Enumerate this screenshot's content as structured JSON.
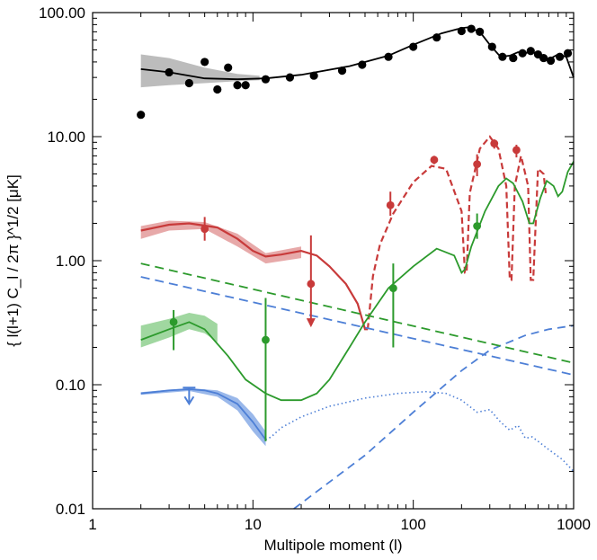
{
  "chart_data": {
    "type": "line",
    "xlabel": "Multipole moment (l)",
    "ylabel": "{ l(l+1) C_l / 2π }^1/2 [μK]",
    "xscale": "log",
    "yscale": "log",
    "xlim": [
      1,
      1000
    ],
    "ylim": [
      0.01,
      100
    ],
    "x_ticks": [
      1,
      10,
      100,
      1000
    ],
    "x_tick_labels": [
      "1",
      "10",
      "100",
      "1000"
    ],
    "y_ticks": [
      0.01,
      0.1,
      1,
      10,
      100
    ],
    "y_tick_labels": [
      "0.01",
      "0.10",
      "1.00",
      "10.00",
      "100.00"
    ],
    "grid": false,
    "legend": "none",
    "colors": {
      "TT": "#000000",
      "EE": "#c83a3a",
      "TE": "#2c9a2c",
      "BB": "#4d7fd6",
      "TT_band": "#b5b5b5",
      "EE_band": "#e39a9a",
      "TE_band": "#8fd08f",
      "BB_band": "#8fb0e8"
    },
    "series": [
      {
        "key": "TT",
        "curve": [
          [
            2,
            35
          ],
          [
            3,
            33
          ],
          [
            5,
            29.5
          ],
          [
            8,
            29
          ],
          [
            12,
            29.5
          ],
          [
            20,
            31.5
          ],
          [
            40,
            37
          ],
          [
            70,
            45
          ],
          [
            100,
            55
          ],
          [
            150,
            68
          ],
          [
            200,
            75
          ],
          [
            220,
            76
          ],
          [
            260,
            70
          ],
          [
            300,
            55
          ],
          [
            350,
            44
          ],
          [
            400,
            45
          ],
          [
            450,
            48
          ],
          [
            500,
            47
          ],
          [
            550,
            49
          ],
          [
            600,
            45
          ],
          [
            700,
            42
          ],
          [
            800,
            46
          ],
          [
            900,
            44
          ],
          [
            1000,
            30
          ]
        ],
        "band": [
          [
            2,
            25,
            46
          ],
          [
            3,
            26,
            43
          ],
          [
            5,
            27,
            36
          ],
          [
            8,
            28,
            32
          ],
          [
            11,
            28.5,
            31
          ]
        ],
        "points": [
          [
            2,
            15
          ],
          [
            3,
            33
          ],
          [
            4,
            27
          ],
          [
            5,
            40
          ],
          [
            6,
            24
          ],
          [
            7,
            36
          ],
          [
            8,
            26
          ],
          [
            9,
            26
          ],
          [
            12,
            29
          ],
          [
            17,
            30
          ],
          [
            24,
            31
          ],
          [
            36,
            34
          ],
          [
            48,
            38
          ],
          [
            70,
            44
          ],
          [
            100,
            53
          ],
          [
            140,
            63
          ],
          [
            200,
            71
          ],
          [
            230,
            74
          ],
          [
            260,
            70
          ],
          [
            310,
            53
          ],
          [
            360,
            44
          ],
          [
            420,
            43
          ],
          [
            480,
            47
          ],
          [
            540,
            49
          ],
          [
            600,
            46
          ],
          [
            650,
            43
          ],
          [
            720,
            41
          ],
          [
            820,
            44
          ],
          [
            920,
            47
          ]
        ]
      },
      {
        "key": "EE",
        "curve": [
          [
            2,
            1.75
          ],
          [
            3,
            1.95
          ],
          [
            4,
            2.0
          ],
          [
            6,
            1.85
          ],
          [
            8,
            1.5
          ],
          [
            10,
            1.2
          ],
          [
            12,
            1.08
          ],
          [
            15,
            1.12
          ],
          [
            20,
            1.2
          ],
          [
            25,
            1.1
          ],
          [
            30,
            0.9
          ],
          [
            38,
            0.65
          ],
          [
            45,
            0.45
          ],
          [
            50,
            0.28
          ],
          [
            52,
            0.28
          ],
          [
            56,
            0.75
          ],
          [
            62,
            1.35
          ],
          [
            75,
            2.4
          ],
          [
            100,
            4.3
          ],
          [
            130,
            5.8
          ],
          [
            160,
            5.5
          ],
          [
            200,
            2.5
          ],
          [
            210,
            0.8
          ],
          [
            215,
            0.8
          ],
          [
            225,
            3.5
          ],
          [
            260,
            8.0
          ],
          [
            300,
            10.0
          ],
          [
            340,
            8.0
          ],
          [
            380,
            4.0
          ],
          [
            400,
            0.7
          ],
          [
            410,
            0.7
          ],
          [
            430,
            4.0
          ],
          [
            470,
            7.0
          ],
          [
            520,
            4.0
          ],
          [
            540,
            0.7
          ],
          [
            560,
            0.7
          ],
          [
            600,
            5.5
          ],
          [
            650,
            5.0
          ],
          [
            670,
            3.5
          ]
        ],
        "band": [
          [
            2,
            1.5,
            1.9
          ],
          [
            3,
            1.75,
            2.1
          ],
          [
            5,
            1.8,
            2.05
          ],
          [
            8,
            1.3,
            1.65
          ],
          [
            12,
            0.95,
            1.15
          ],
          [
            20,
            1.05,
            1.3
          ]
        ],
        "points": [
          [
            5,
            1.8,
            1.45,
            2.25
          ],
          [
            23,
            0.65,
            0.3,
            1.6
          ],
          [
            72,
            2.8,
            2.3,
            3.6
          ],
          [
            135,
            6.5,
            6.0,
            7.0
          ],
          [
            250,
            6.0,
            4.8,
            7.2
          ],
          [
            320,
            8.8,
            8.0,
            9.5
          ],
          [
            440,
            7.8,
            6.8,
            8.6
          ]
        ]
      },
      {
        "key": "TE",
        "curve": [
          [
            2,
            0.23
          ],
          [
            3,
            0.28
          ],
          [
            4,
            0.32
          ],
          [
            5,
            0.28
          ],
          [
            7,
            0.17
          ],
          [
            9,
            0.11
          ],
          [
            12,
            0.085
          ],
          [
            15,
            0.075
          ],
          [
            20,
            0.075
          ],
          [
            25,
            0.085
          ],
          [
            30,
            0.11
          ],
          [
            40,
            0.2
          ],
          [
            50,
            0.32
          ],
          [
            70,
            0.6
          ],
          [
            100,
            0.9
          ],
          [
            140,
            1.25
          ],
          [
            180,
            1.1
          ],
          [
            200,
            0.8
          ],
          [
            210,
            0.85
          ],
          [
            230,
            1.3
          ],
          [
            280,
            2.5
          ],
          [
            340,
            4.0
          ],
          [
            380,
            4.6
          ],
          [
            420,
            4.2
          ],
          [
            480,
            3.0
          ],
          [
            530,
            2.0
          ],
          [
            560,
            2.0
          ],
          [
            620,
            3.2
          ],
          [
            680,
            4.4
          ],
          [
            750,
            4.0
          ],
          [
            800,
            3.3
          ],
          [
            850,
            3.6
          ],
          [
            920,
            5.2
          ],
          [
            1000,
            6.3
          ]
        ],
        "band": [
          [
            2,
            0.2,
            0.3
          ],
          [
            3,
            0.24,
            0.34
          ],
          [
            4,
            0.28,
            0.38
          ],
          [
            5,
            0.26,
            0.36
          ],
          [
            6,
            0.22,
            0.31
          ]
        ],
        "points": [
          [
            3.2,
            0.32,
            0.19,
            0.4
          ],
          [
            12,
            0.23,
            0.035,
            0.5
          ],
          [
            75,
            0.6,
            0.2,
            0.95
          ],
          [
            250,
            1.9,
            1.5,
            2.4
          ]
        ]
      },
      {
        "key": "BB",
        "curve": [
          [
            2,
            0.085
          ],
          [
            3,
            0.09
          ],
          [
            4,
            0.092
          ],
          [
            5,
            0.09
          ],
          [
            6,
            0.085
          ],
          [
            8,
            0.07
          ],
          [
            10,
            0.05
          ],
          [
            12,
            0.036
          ],
          [
            13,
            0.038
          ],
          [
            15,
            0.045
          ],
          [
            20,
            0.055
          ],
          [
            30,
            0.067
          ],
          [
            50,
            0.078
          ],
          [
            80,
            0.085
          ],
          [
            120,
            0.088
          ],
          [
            160,
            0.085
          ],
          [
            200,
            0.075
          ],
          [
            250,
            0.06
          ],
          [
            300,
            0.063
          ],
          [
            350,
            0.05
          ],
          [
            400,
            0.043
          ],
          [
            450,
            0.047
          ],
          [
            500,
            0.037
          ],
          [
            550,
            0.038
          ],
          [
            600,
            0.035
          ],
          [
            700,
            0.03
          ],
          [
            850,
            0.025
          ],
          [
            1000,
            0.02
          ]
        ],
        "band": [
          [
            2,
            0.083,
            0.087
          ],
          [
            4,
            0.089,
            0.094
          ],
          [
            6,
            0.08,
            0.09
          ],
          [
            8,
            0.062,
            0.078
          ],
          [
            10,
            0.042,
            0.058
          ],
          [
            12,
            0.032,
            0.042
          ]
        ],
        "upper_limit": [
          4,
          0.075
        ],
        "lensing_curve": [
          [
            18,
            0.01
          ],
          [
            50,
            0.027
          ],
          [
            100,
            0.06
          ],
          [
            200,
            0.13
          ],
          [
            300,
            0.19
          ],
          [
            500,
            0.25
          ],
          [
            700,
            0.28
          ],
          [
            1000,
            0.3
          ]
        ]
      },
      {
        "key": "foreground-green",
        "curve": [
          [
            2,
            0.95
          ],
          [
            1000,
            0.15
          ]
        ]
      },
      {
        "key": "foreground-blue",
        "curve": [
          [
            2,
            0.74
          ],
          [
            1000,
            0.12
          ]
        ]
      }
    ]
  }
}
